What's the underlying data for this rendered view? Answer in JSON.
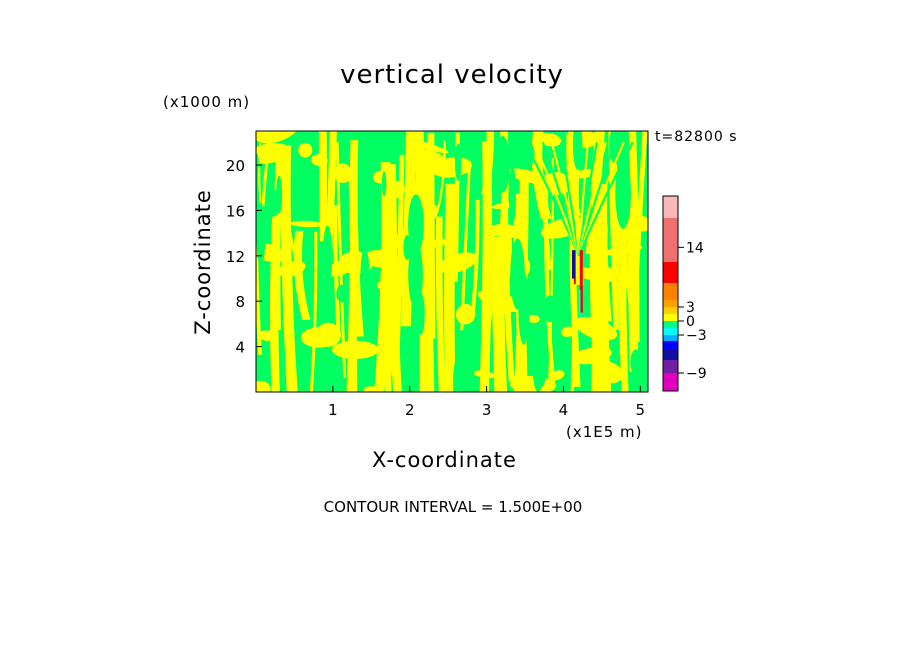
{
  "chart_data": {
    "type": "heatmap",
    "title": "vertical velocity",
    "xlabel": "X-coordinate",
    "ylabel": "Z-coordinate",
    "x_units": "(x1E5 m)",
    "y_units": "(x1000 m)",
    "time_label": "t=82800 s",
    "footer": "CONTOUR INTERVAL = 1.500E+00",
    "xlim": [
      0,
      5.1
    ],
    "ylim": [
      0,
      23
    ],
    "x_ticks": [
      1,
      2,
      3,
      4,
      5
    ],
    "y_ticks": [
      4,
      8,
      12,
      16,
      20
    ],
    "contour_interval": 1.5,
    "colorbar": {
      "levels": [
        -10.5,
        -9,
        -7.5,
        -6,
        -4.5,
        -3,
        -1.5,
        0,
        1.5,
        3,
        4.5,
        6,
        12,
        18,
        19.5
      ],
      "colors": [
        "#e000c0",
        "#7020a0",
        "#1010a0",
        "#0000ff",
        "#00b0ff",
        "#00ffff",
        "#00ff80",
        "#ffff00",
        "#ffd000",
        "#ffa000",
        "#ff8000",
        "#ff0000",
        "#f07070",
        "#f8b8b8"
      ],
      "tick_labels": [
        {
          "value": -9,
          "label": "−9"
        },
        {
          "value": -3,
          "label": "−3"
        },
        {
          "value": 0,
          "label": "0"
        },
        {
          "value": 3,
          "label": "3"
        },
        {
          "value": 14,
          "label": "14"
        }
      ]
    },
    "field": {
      "background": "#00ff60",
      "positive_bands": "#ffff00",
      "updraft_core": {
        "x": 4.2,
        "z_range": [
          7,
          12.5
        ],
        "color": "#ff0000"
      },
      "downdraft_core": {
        "x": 4.15,
        "z_range": [
          10,
          12.5
        ],
        "color": "#1010a0"
      }
    }
  }
}
